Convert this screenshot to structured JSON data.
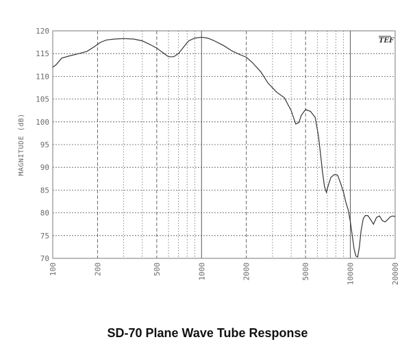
{
  "caption": "SD-70 Plane Wave Tube Response",
  "chart_data": {
    "type": "line",
    "title": "SD-70 Plane Wave Tube Response",
    "xlabel": "",
    "ylabel": "MAGNITUDE (dB)",
    "xscale": "log",
    "xlim": [
      100,
      20000
    ],
    "ylim": [
      70,
      120
    ],
    "x_ticks": [
      "100",
      "200",
      "500",
      "1000",
      "2000",
      "5000",
      "10000",
      "20000"
    ],
    "y_ticks": [
      "70",
      "75",
      "80",
      "85",
      "90",
      "95",
      "100",
      "105",
      "110",
      "115",
      "120"
    ],
    "grid": true,
    "logo": "TEF",
    "colors": {
      "line": "#333333",
      "grid": "#555555",
      "frame": "#777777"
    },
    "series": [
      {
        "name": "",
        "x": [
          100,
          105,
          115,
          130,
          150,
          170,
          190,
          210,
          230,
          260,
          300,
          350,
          400,
          450,
          500,
          550,
          600,
          650,
          700,
          760,
          820,
          900,
          1000,
          1100,
          1200,
          1400,
          1600,
          1800,
          2000,
          2200,
          2500,
          2800,
          3200,
          3600,
          4000,
          4300,
          4500,
          4700,
          5000,
          5400,
          5800,
          6100,
          6300,
          6500,
          6700,
          6900,
          7100,
          7400,
          7800,
          8200,
          8600,
          9000,
          9300,
          9700,
          10000,
          10300,
          10600,
          10900,
          11200,
          11500,
          11800,
          12200,
          12600,
          13100,
          13700,
          14300,
          15000,
          15700,
          16400,
          17100,
          17800,
          18500,
          19200,
          20000
        ],
        "y": [
          112,
          112.5,
          114,
          114.5,
          115,
          115.5,
          116.5,
          117.5,
          118,
          118.2,
          118.3,
          118.2,
          117.8,
          117,
          116.2,
          115.2,
          114.3,
          114.3,
          115,
          116.5,
          117.8,
          118.4,
          118.6,
          118.4,
          117.9,
          116.8,
          115.6,
          114.8,
          114.2,
          113,
          111,
          108.5,
          106.5,
          105.3,
          102.5,
          99.5,
          99.8,
          101.5,
          102.7,
          102.3,
          101,
          97,
          93,
          89,
          85.8,
          84.5,
          86,
          87.8,
          88.4,
          88.3,
          86.5,
          84.5,
          82.5,
          80.5,
          78,
          75,
          72,
          70.5,
          70.3,
          72.5,
          76,
          78.7,
          79.4,
          79.4,
          78.5,
          77.5,
          79,
          79.3,
          78.3,
          78,
          78.5,
          79.1,
          79.3,
          79.2
        ]
      }
    ]
  }
}
